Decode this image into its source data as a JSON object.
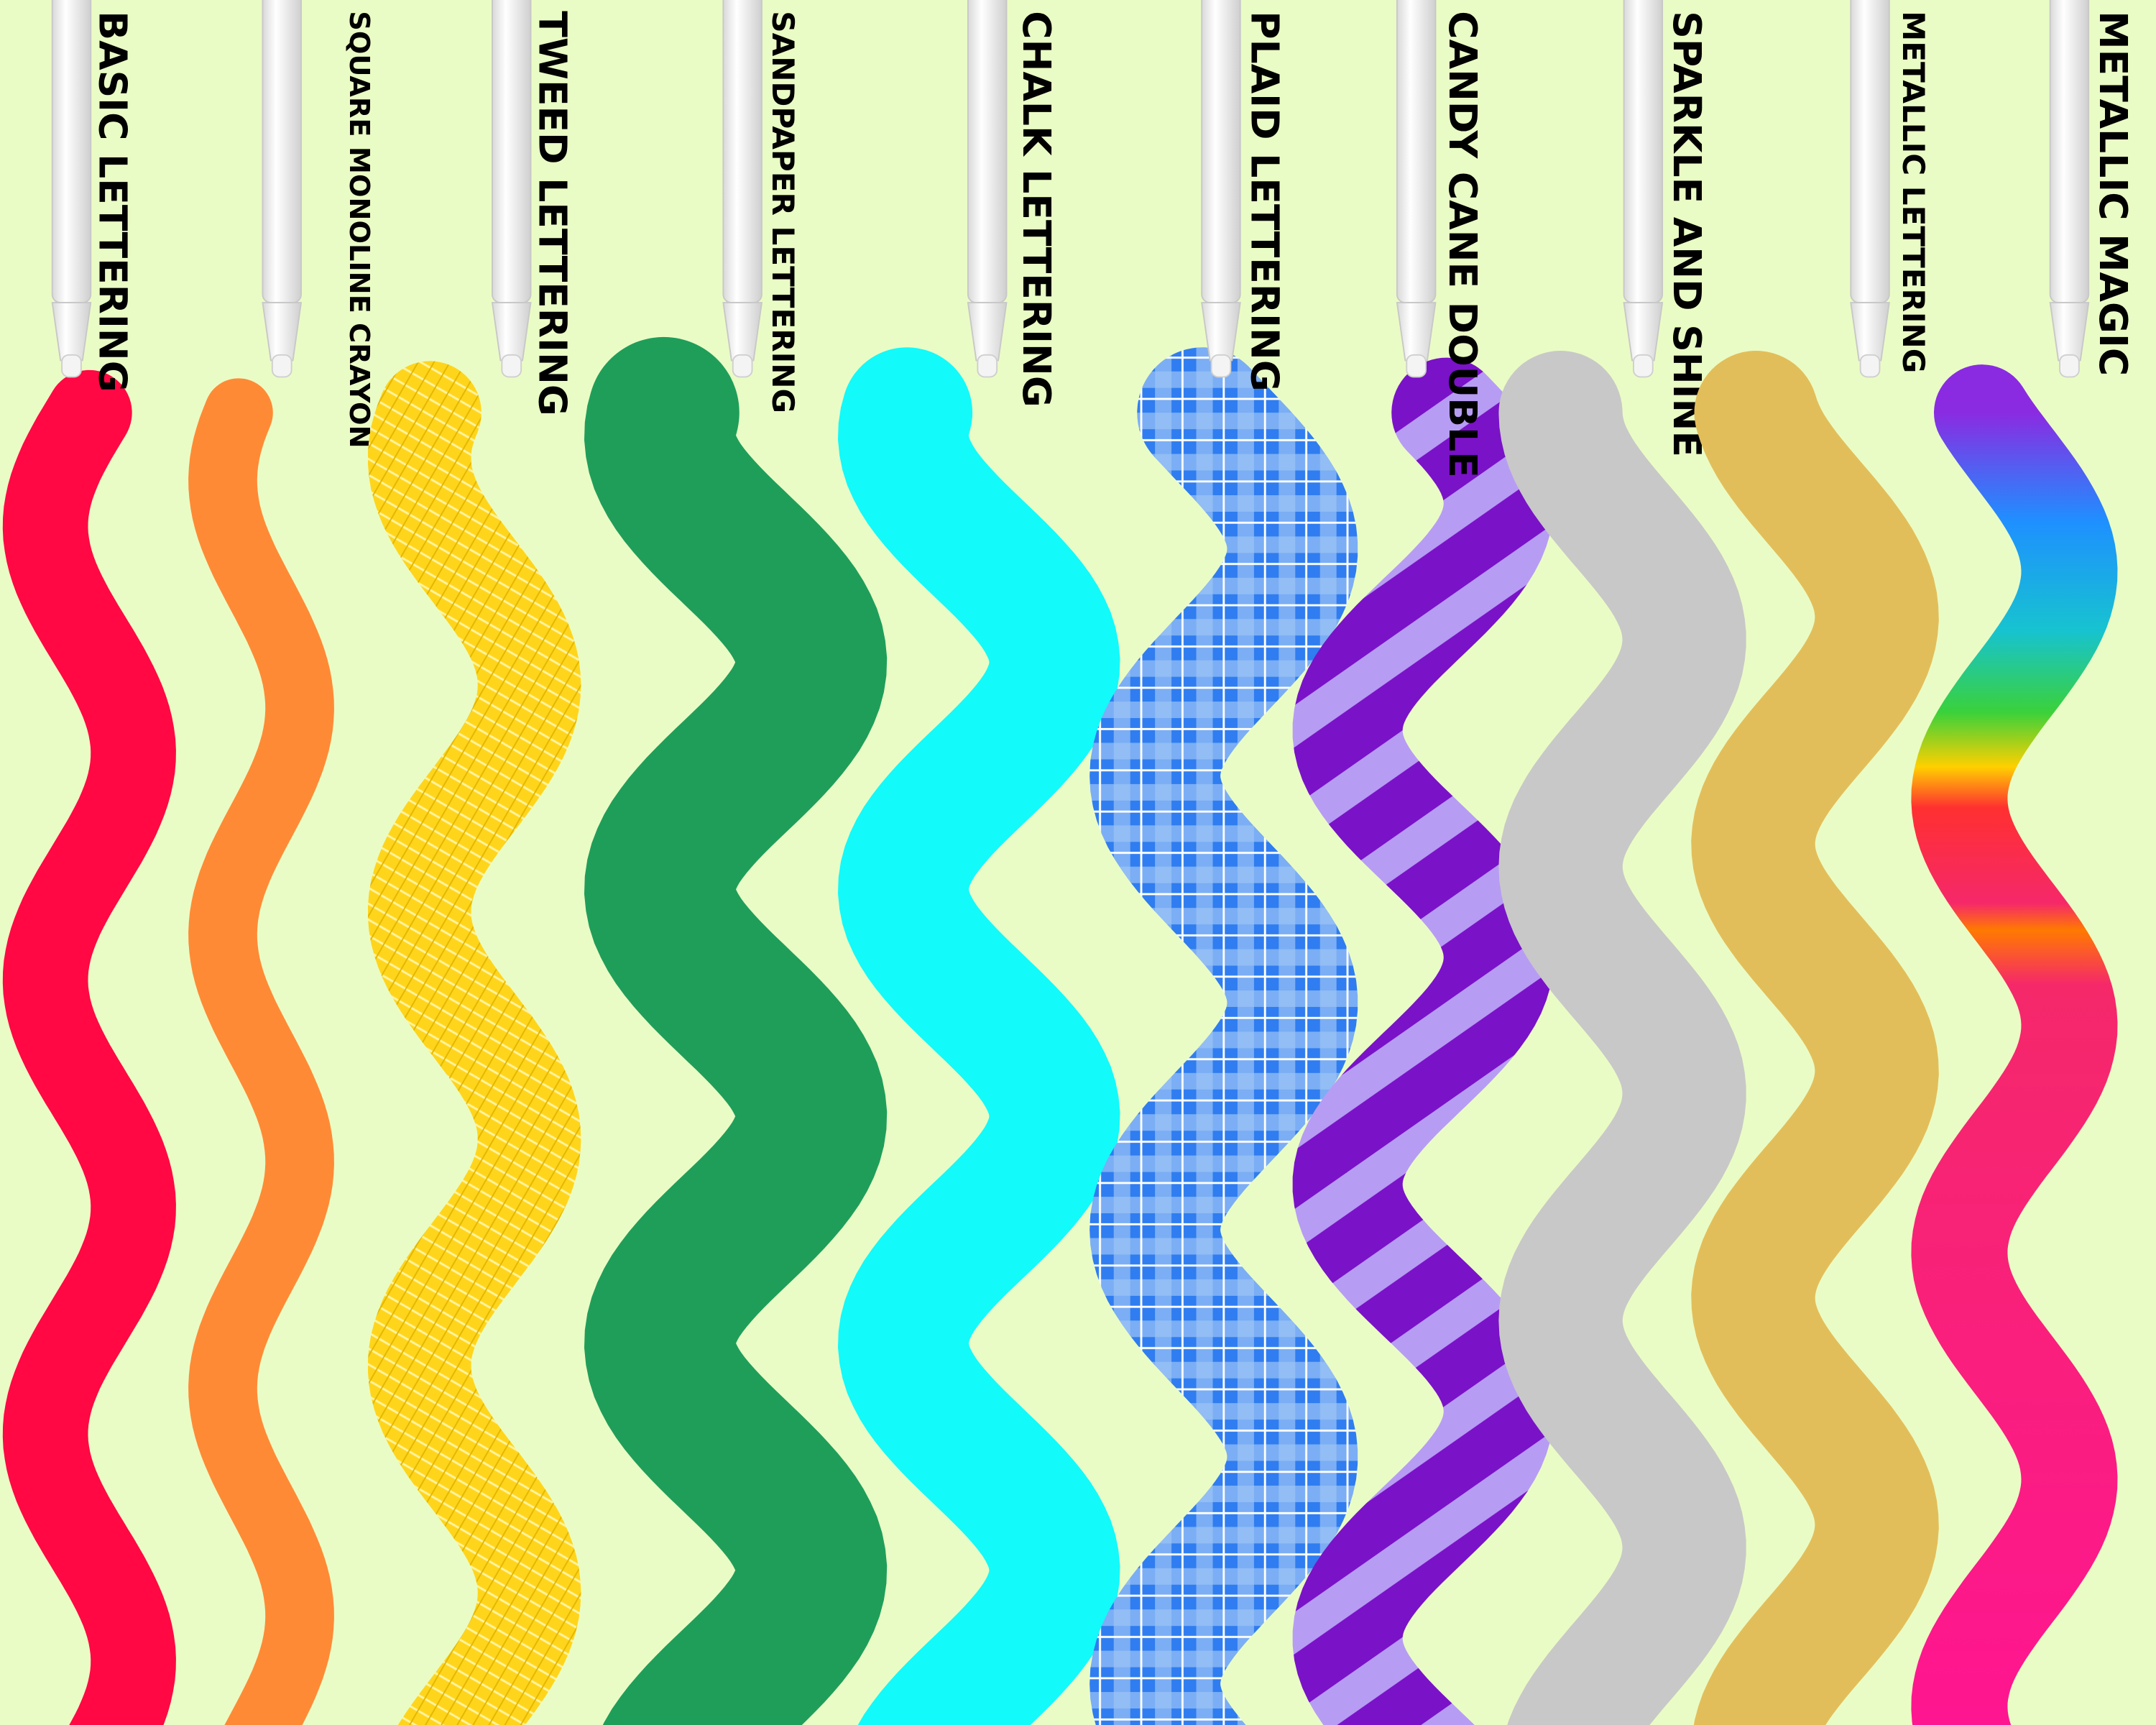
{
  "brushes": [
    {
      "name": "BASIC LETTERING"
    },
    {
      "name": "SQUARE MONOLINE CRAYON"
    },
    {
      "name": "TWEED LETTERING"
    },
    {
      "name": "SANDPAPER LETTERING"
    },
    {
      "name": "CHALK LETTERING"
    },
    {
      "name": "PLAID LETTERING"
    },
    {
      "name": "CANDY CANE DOUBLE"
    },
    {
      "name": "SPARKLE AND SHINE"
    },
    {
      "name": "METALLIC LETTERING"
    },
    {
      "name": "METALLIC MAGIC"
    }
  ]
}
